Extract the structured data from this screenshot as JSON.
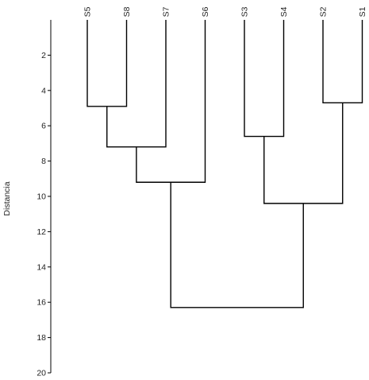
{
  "chart_data": {
    "type": "dendrogram",
    "ylabel": "Distancia",
    "ylim": [
      0,
      20
    ],
    "yticks": [
      2,
      4,
      6,
      8,
      10,
      12,
      14,
      16,
      18,
      20
    ],
    "leaves": [
      "S5",
      "S8",
      "S7",
      "S6",
      "S3",
      "S4",
      "S2",
      "S1"
    ],
    "merges": [
      {
        "left": "S5",
        "right": "S8",
        "height": 4.9
      },
      {
        "left": "S5+S8",
        "right": "S7",
        "height": 7.2
      },
      {
        "left": "S5+S8+S7",
        "right": "S6",
        "height": 9.2
      },
      {
        "left": "S3",
        "right": "S4",
        "height": 6.6
      },
      {
        "left": "S2",
        "right": "S1",
        "height": 4.7
      },
      {
        "left": "S3+S4",
        "right": "S2+S1",
        "height": 10.4
      },
      {
        "left": "S5+S8+S7+S6",
        "right": "S3+S4+S2+S1",
        "height": 16.3
      }
    ],
    "grid": false,
    "line_color": "#000000"
  }
}
